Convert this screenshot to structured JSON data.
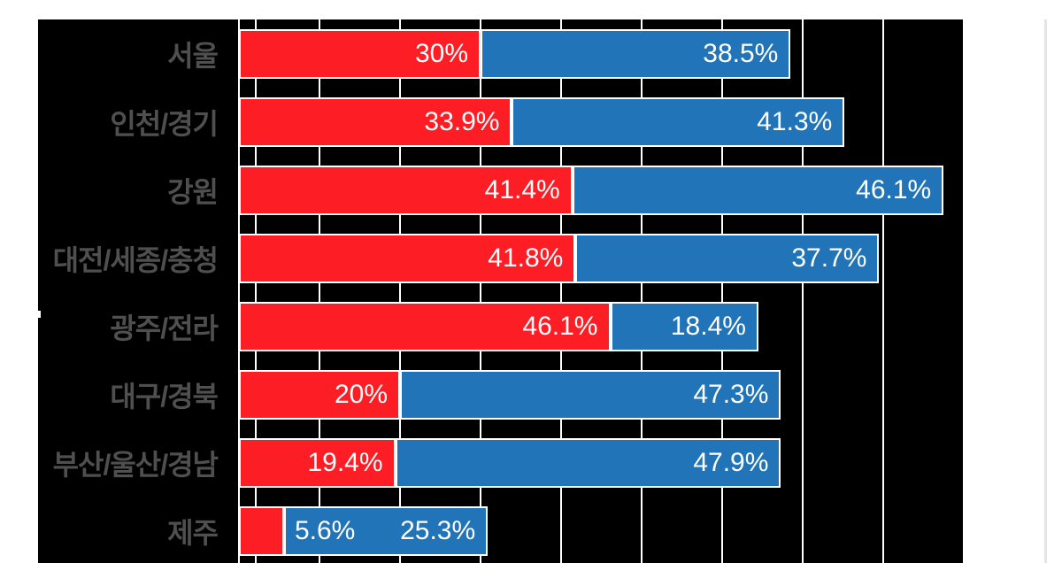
{
  "chart_data": {
    "type": "bar",
    "orientation": "horizontal",
    "stacked": true,
    "title": "",
    "xlabel": "",
    "ylabel": "",
    "legend": "none",
    "grid": true,
    "xlim": [
      0,
      90
    ],
    "axis_ticks_pct": [
      0,
      10,
      20,
      30,
      40,
      50,
      60,
      70,
      80
    ],
    "extra_gridlines_pct": [
      2.1
    ],
    "categories": [
      "서울",
      "인천/경기",
      "강원",
      "대전/세종/충청",
      "광주/전라",
      "대구/경북",
      "부산/울산/경남",
      "제주"
    ],
    "series": [
      {
        "name": "red-series",
        "color": "#fd1d24",
        "values": [
          30,
          33.9,
          41.4,
          41.8,
          46.1,
          20,
          19.4,
          5.6
        ],
        "labels": [
          "30%",
          "33.9%",
          "41.4%",
          "41.8%",
          "46.1%",
          "20%",
          "19.4%",
          "5.6%"
        ]
      },
      {
        "name": "blue-series",
        "color": "#2074b7",
        "values": [
          38.5,
          41.3,
          46.1,
          37.7,
          18.4,
          47.3,
          47.9,
          25.3
        ],
        "labels": [
          "38.5%",
          "41.3%",
          "46.1%",
          "37.7%",
          "18.4%",
          "47.3%",
          "47.9%",
          "25.3%"
        ]
      }
    ],
    "colors": {
      "plot_background": "#000000",
      "page_background": "#ffffff",
      "gridline": "#ffffff",
      "bar_border": "#ffffff",
      "category_label": "#4f4f4f",
      "value_label": "#ffffff",
      "right_divider": "#e4e4e4"
    }
  }
}
